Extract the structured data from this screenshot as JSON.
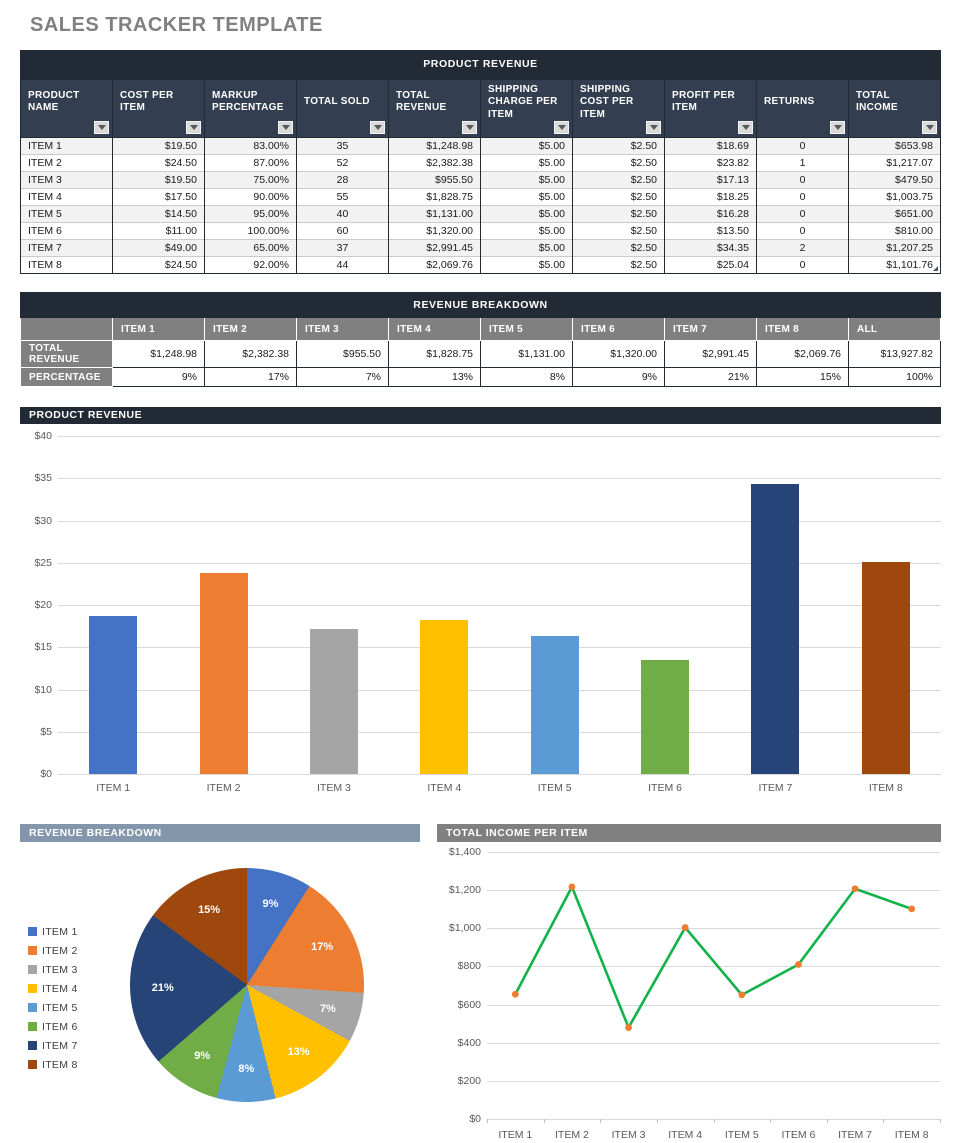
{
  "page": {
    "title": "SALES TRACKER TEMPLATE"
  },
  "icons": {
    "filter": "filter-dropdown-icon",
    "resize": "resize-handle-icon"
  },
  "colors": {
    "band_dark": "#222A35",
    "header_slate": "#333F50",
    "row_stripe": "#F2F2F2",
    "table2_gray": "#808080",
    "pie_header": "#8496AB",
    "line_header": "#808080",
    "title_gray": "#808080",
    "grid": "#D9D9D9",
    "axis_text": "#595959"
  },
  "product_table": {
    "title": "PRODUCT REVENUE",
    "columns": [
      {
        "label": "PRODUCT NAME",
        "align": "left"
      },
      {
        "label": "COST PER ITEM",
        "align": "right"
      },
      {
        "label": "MARKUP PERCENTAGE",
        "align": "right"
      },
      {
        "label": "TOTAL SOLD",
        "align": "center"
      },
      {
        "label": "TOTAL REVENUE",
        "align": "right"
      },
      {
        "label": "SHIPPING CHARGE PER ITEM",
        "align": "right"
      },
      {
        "label": "SHIPPING COST PER ITEM",
        "align": "right"
      },
      {
        "label": "PROFIT PER ITEM",
        "align": "right"
      },
      {
        "label": "RETURNS",
        "align": "center"
      },
      {
        "label": "TOTAL INCOME",
        "align": "right"
      }
    ],
    "rows": [
      [
        "ITEM 1",
        "$19.50",
        "83.00%",
        "35",
        "$1,248.98",
        "$5.00",
        "$2.50",
        "$18.69",
        "0",
        "$653.98"
      ],
      [
        "ITEM 2",
        "$24.50",
        "87.00%",
        "52",
        "$2,382.38",
        "$5.00",
        "$2.50",
        "$23.82",
        "1",
        "$1,217.07"
      ],
      [
        "ITEM 3",
        "$19.50",
        "75.00%",
        "28",
        "$955.50",
        "$5.00",
        "$2.50",
        "$17.13",
        "0",
        "$479.50"
      ],
      [
        "ITEM 4",
        "$17.50",
        "90.00%",
        "55",
        "$1,828.75",
        "$5.00",
        "$2.50",
        "$18.25",
        "0",
        "$1,003.75"
      ],
      [
        "ITEM 5",
        "$14.50",
        "95.00%",
        "40",
        "$1,131.00",
        "$5.00",
        "$2.50",
        "$16.28",
        "0",
        "$651.00"
      ],
      [
        "ITEM 6",
        "$11.00",
        "100.00%",
        "60",
        "$1,320.00",
        "$5.00",
        "$2.50",
        "$13.50",
        "0",
        "$810.00"
      ],
      [
        "ITEM 7",
        "$49.00",
        "65.00%",
        "37",
        "$2,991.45",
        "$5.00",
        "$2.50",
        "$34.35",
        "2",
        "$1,207.25"
      ],
      [
        "ITEM 8",
        "$24.50",
        "92.00%",
        "44",
        "$2,069.76",
        "$5.00",
        "$2.50",
        "$25.04",
        "0",
        "$1,101.76"
      ]
    ]
  },
  "breakdown_table": {
    "title": "REVENUE BREAKDOWN",
    "col_headers": [
      "",
      "ITEM 1",
      "ITEM 2",
      "ITEM 3",
      "ITEM 4",
      "ITEM 5",
      "ITEM 6",
      "ITEM 7",
      "ITEM 8",
      "ALL"
    ],
    "rows": [
      {
        "label": "TOTAL REVENUE",
        "values": [
          "$1,248.98",
          "$2,382.38",
          "$955.50",
          "$1,828.75",
          "$1,131.00",
          "$1,320.00",
          "$2,991.45",
          "$2,069.76",
          "$13,927.82"
        ]
      },
      {
        "label": "PERCENTAGE",
        "values": [
          "9%",
          "17%",
          "7%",
          "13%",
          "8%",
          "9%",
          "21%",
          "15%",
          "100%"
        ]
      }
    ]
  },
  "chart_data": [
    {
      "type": "bar",
      "title": "PRODUCT REVENUE",
      "categories": [
        "ITEM 1",
        "ITEM 2",
        "ITEM 3",
        "ITEM 4",
        "ITEM 5",
        "ITEM 6",
        "ITEM 7",
        "ITEM 8"
      ],
      "values": [
        18.69,
        23.82,
        17.13,
        18.25,
        16.28,
        13.5,
        34.35,
        25.04
      ],
      "ylim": [
        0,
        40
      ],
      "yticks": [
        "$0",
        "$5",
        "$10",
        "$15",
        "$20",
        "$25",
        "$30",
        "$35",
        "$40"
      ],
      "bar_colors": [
        "#4472C4",
        "#ED7D31",
        "#A5A5A5",
        "#FFC000",
        "#5B9BD5",
        "#70AD47",
        "#264478",
        "#9E480E"
      ],
      "grid": true,
      "legend": false
    },
    {
      "type": "pie",
      "title": "REVENUE BREAKDOWN",
      "labels": [
        "ITEM 1",
        "ITEM 2",
        "ITEM 3",
        "ITEM 4",
        "ITEM 5",
        "ITEM 6",
        "ITEM 7",
        "ITEM 8"
      ],
      "values": [
        1248.98,
        2382.38,
        955.5,
        1828.75,
        1131.0,
        1320.0,
        2991.45,
        2069.76
      ],
      "percent_labels": [
        "9%",
        "17%",
        "7%",
        "13%",
        "8%",
        "9%",
        "21%",
        "15%"
      ],
      "colors": [
        "#4472C4",
        "#ED7D31",
        "#A5A5A5",
        "#FFC000",
        "#5B9BD5",
        "#70AD47",
        "#264478",
        "#9E480E"
      ],
      "legend_position": "left"
    },
    {
      "type": "line",
      "title": "TOTAL INCOME PER ITEM",
      "categories": [
        "ITEM 1",
        "ITEM 2",
        "ITEM 3",
        "ITEM 4",
        "ITEM 5",
        "ITEM 6",
        "ITEM 7",
        "ITEM 8"
      ],
      "values": [
        653.98,
        1217.07,
        479.5,
        1003.75,
        651.0,
        810.0,
        1207.25,
        1101.76
      ],
      "ylim": [
        0,
        1400
      ],
      "yticks": [
        "$0",
        "$200",
        "$400",
        "$600",
        "$800",
        "$1,000",
        "$1,200",
        "$1,400"
      ],
      "line_color": "#12B24A",
      "marker_color": "#ED7D31",
      "grid": true,
      "legend": false
    }
  ]
}
